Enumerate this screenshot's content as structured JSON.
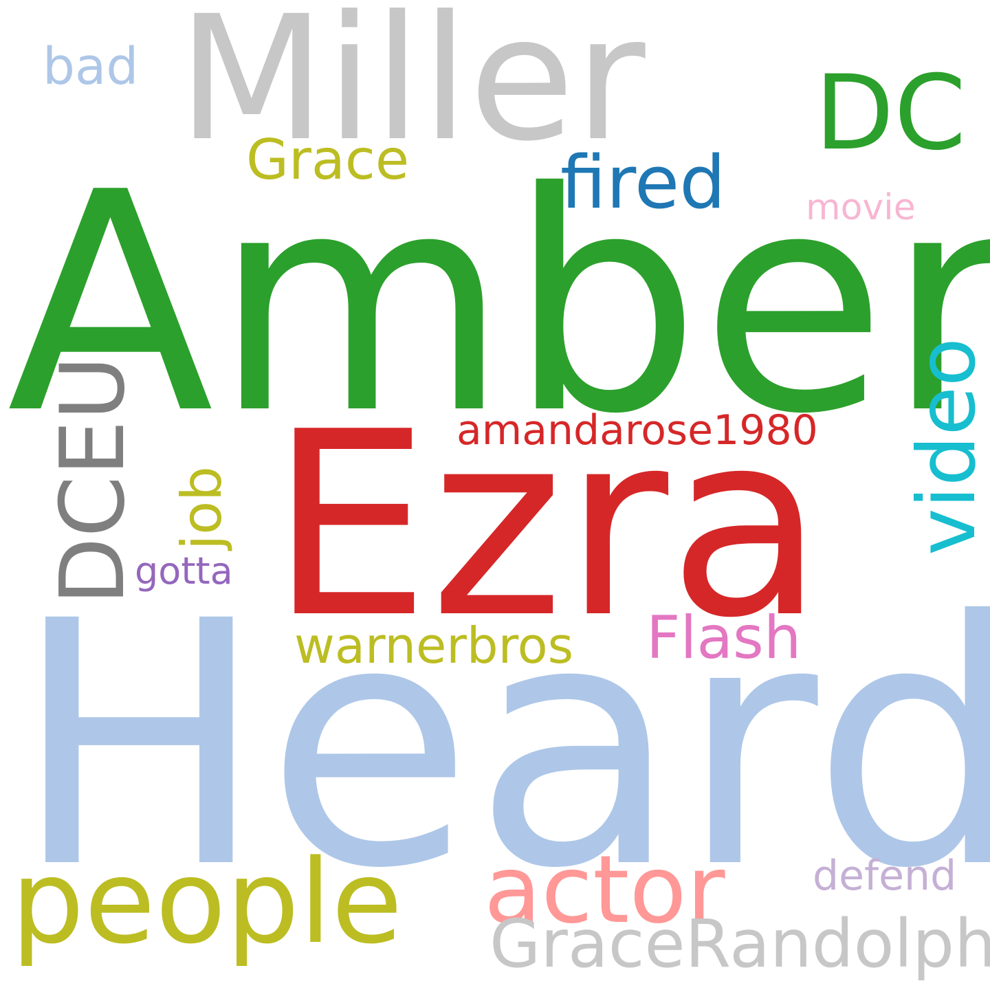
{
  "words": {
    "amber": {
      "text": "Amber",
      "color": "#2ca02c"
    },
    "heard": {
      "text": "Heard",
      "color": "#aec7e8"
    },
    "ezra": {
      "text": "Ezra",
      "color": "#d62728"
    },
    "miller": {
      "text": "Miller",
      "color": "#c7c7c7"
    },
    "people": {
      "text": "people",
      "color": "#bcbd22"
    },
    "dc": {
      "text": "DC",
      "color": "#2ca02c"
    },
    "actor": {
      "text": "actor",
      "color": "#ff9896"
    },
    "dceu": {
      "text": "DCEU",
      "color": "#7f7f7f"
    },
    "video": {
      "text": "video",
      "color": "#17becf"
    },
    "fired": {
      "text": "fired",
      "color": "#1f77b4"
    },
    "gracerandolph": {
      "text": "GraceRandolph",
      "color": "#c7c7c7"
    },
    "flash": {
      "text": "Flash",
      "color": "#e377c2"
    },
    "grace": {
      "text": "Grace",
      "color": "#bcbd22"
    },
    "job": {
      "text": "job",
      "color": "#bcbd22"
    },
    "warnerbros": {
      "text": "warnerbros",
      "color": "#bcbd22"
    },
    "bad": {
      "text": "bad",
      "color": "#aec7e8"
    },
    "amandarose1980": {
      "text": "amandarose1980",
      "color": "#d62728"
    },
    "defend": {
      "text": "defend",
      "color": "#c5b0d5"
    },
    "movie": {
      "text": "movie",
      "color": "#f7b6d2"
    },
    "gotta": {
      "text": "gotta",
      "color": "#9467bd"
    }
  }
}
